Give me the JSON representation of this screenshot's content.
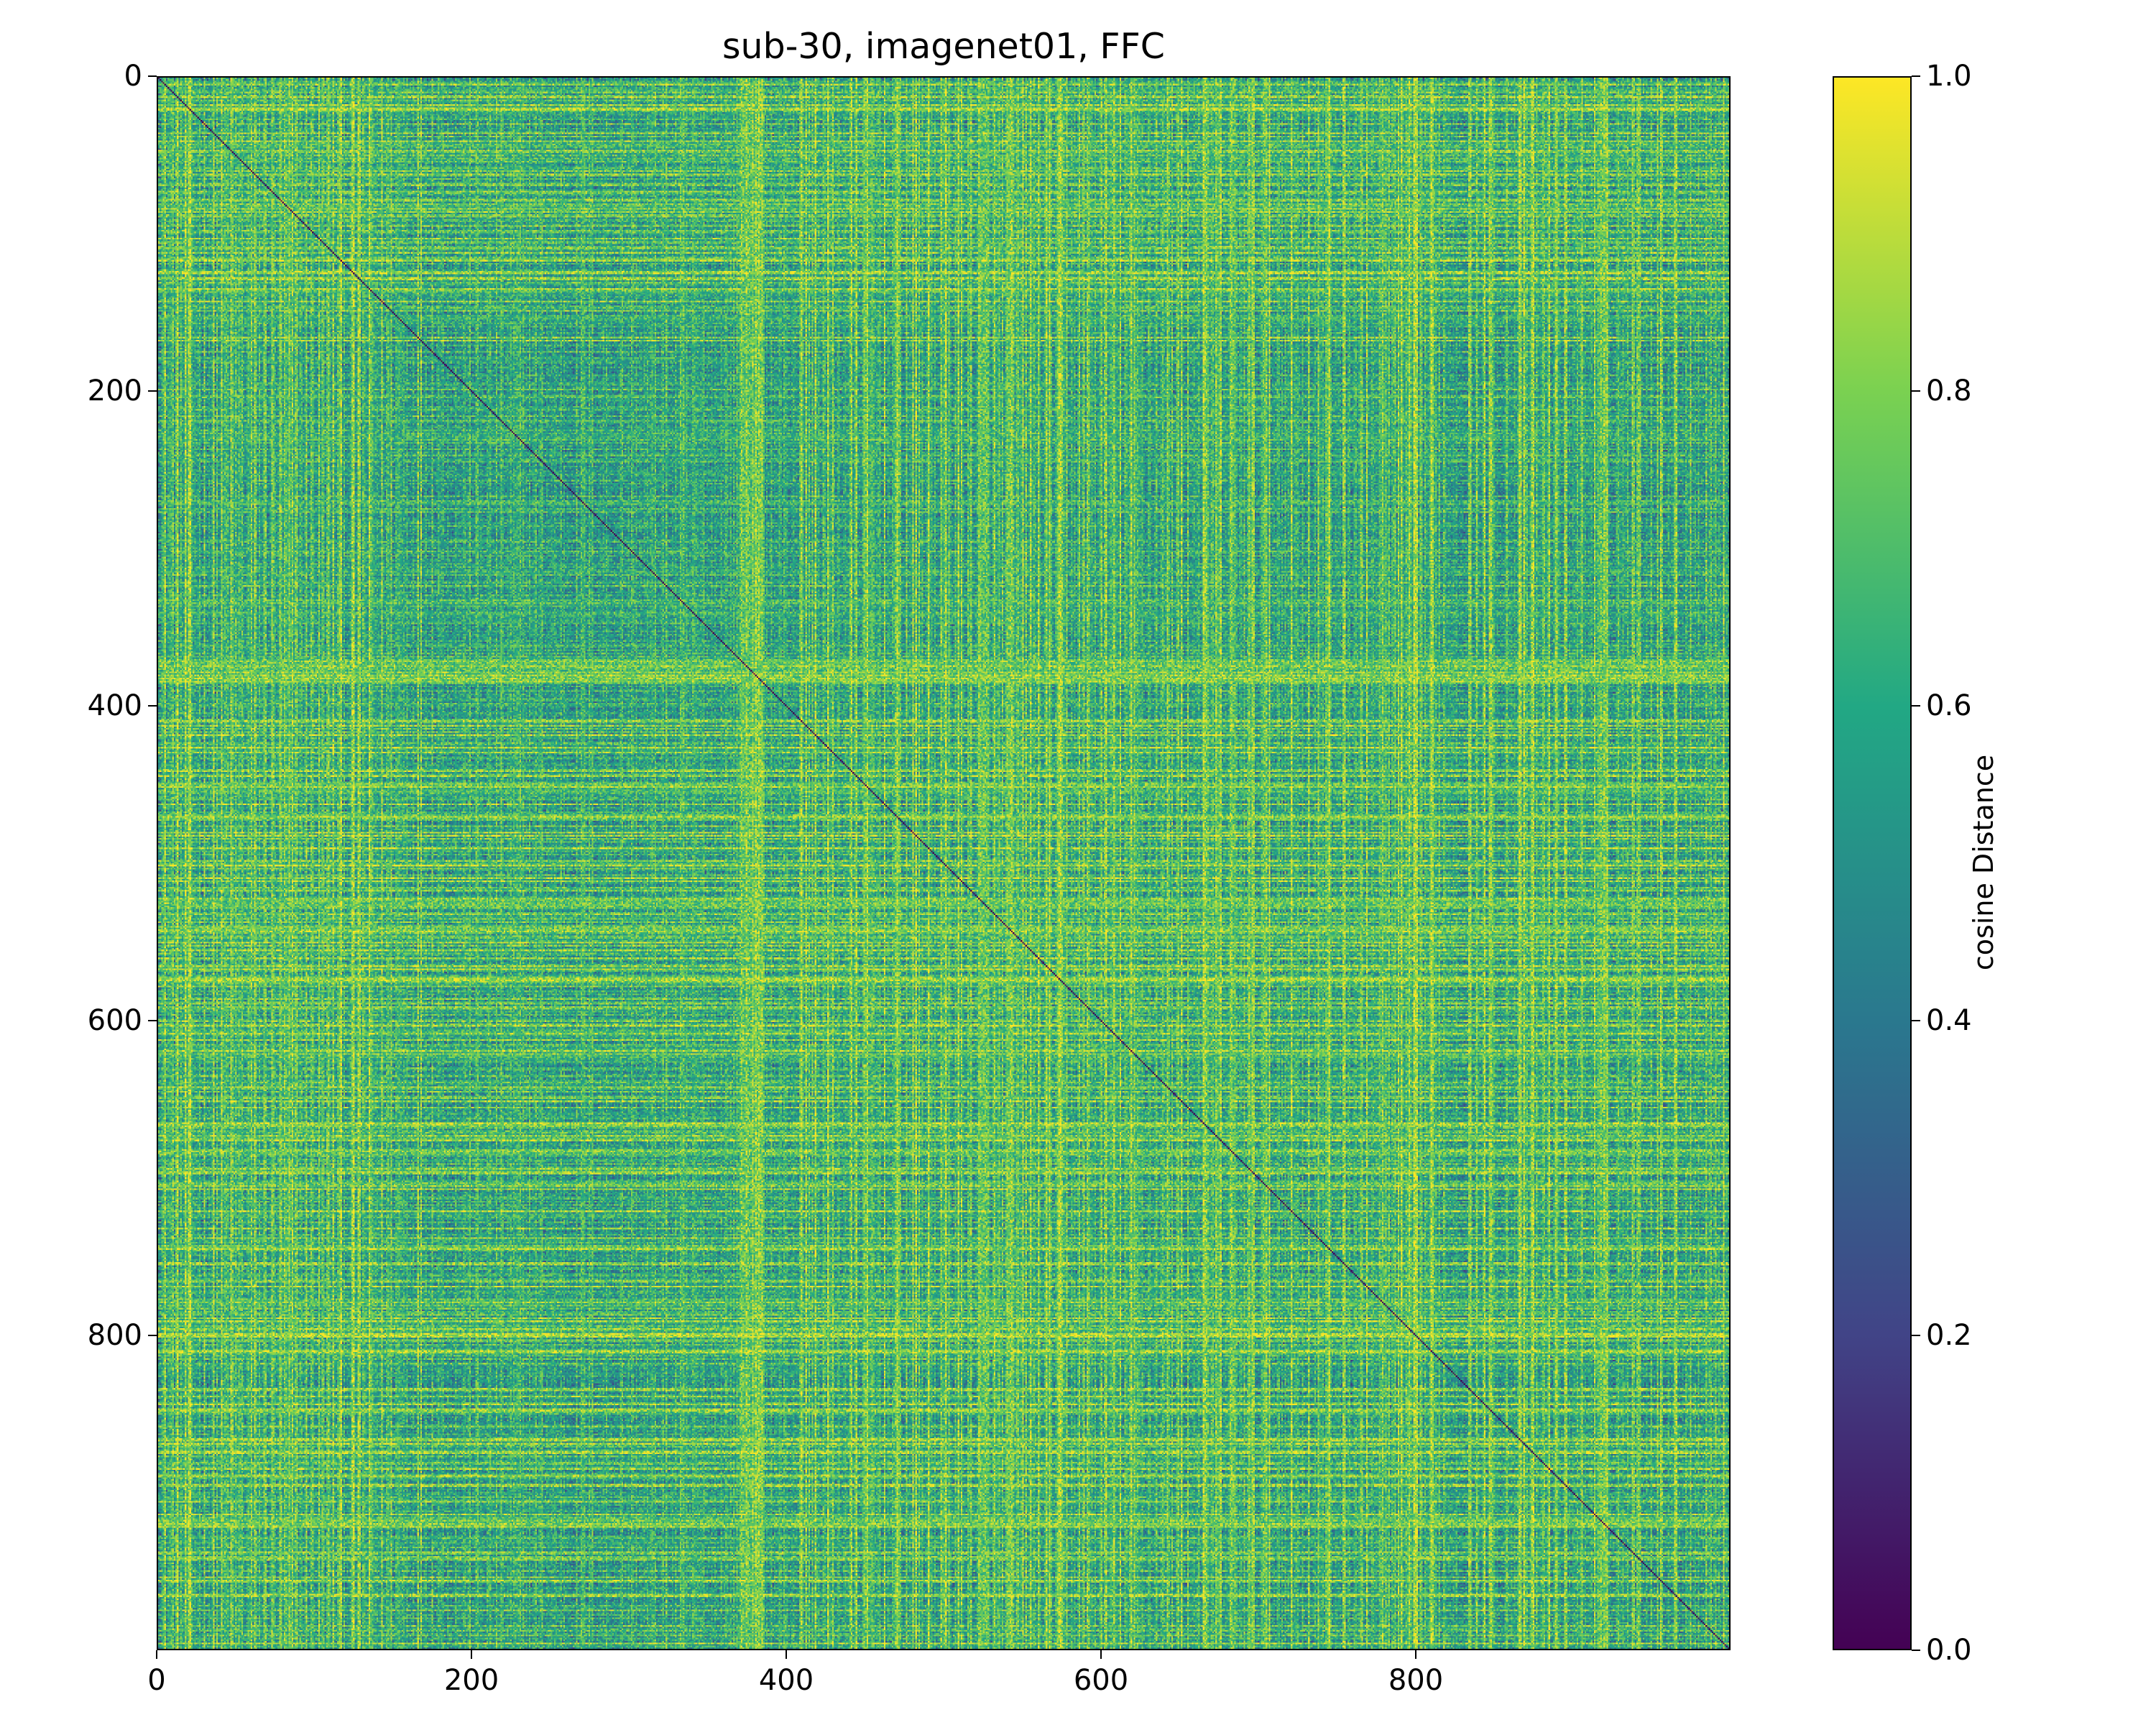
{
  "chart_data": {
    "type": "heatmap",
    "title": "sub-30, imagenet01, FFC",
    "matrix_size": 1000,
    "xlim": [
      0,
      1000
    ],
    "ylim": [
      0,
      1000
    ],
    "y_inverted": true,
    "x_ticks": [
      0,
      200,
      400,
      600,
      800
    ],
    "y_ticks": [
      0,
      200,
      400,
      600,
      800
    ],
    "colorbar": {
      "label": "cosine Distance",
      "range": [
        0.0,
        1.0
      ],
      "ticks": [
        0.0,
        0.2,
        0.4,
        0.6,
        0.8,
        1.0
      ],
      "tick_labels": [
        "0.0",
        "0.2",
        "0.4",
        "0.6",
        "0.8",
        "1.0"
      ],
      "colormap": "viridis",
      "colormap_stops": [
        "#440154",
        "#414487",
        "#2a788e",
        "#22a884",
        "#7ad151",
        "#fde725"
      ]
    },
    "diagonal_value": 0.0,
    "typical_offdiag_range": [
      0.3,
      1.0
    ],
    "notable_bands": [
      {
        "axis": "both",
        "range": [
          180,
          400
        ],
        "description": "darker, lower-distance region"
      },
      {
        "axis": "both",
        "range": [
          370,
          385
        ],
        "description": "bright high-distance stripe"
      }
    ]
  }
}
